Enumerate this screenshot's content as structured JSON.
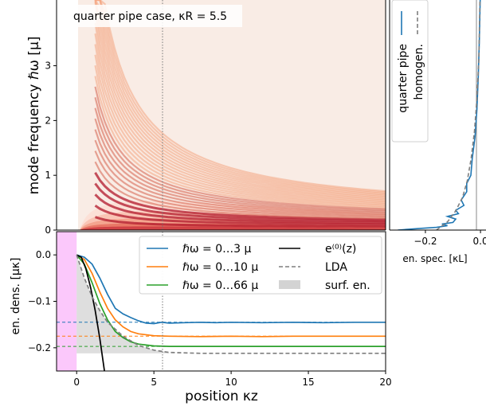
{
  "chart_data": [
    {
      "type": "heatmap",
      "annotation": "quarter pipe case, κR = 5.5",
      "ylabel": "mode frequency ℏω [μ]",
      "ylim": [
        0,
        4.2
      ],
      "xlim": [
        -1.3,
        20
      ],
      "yticks": [
        "0",
        "1",
        "2",
        "3"
      ],
      "colormap": "light-to-dark red (white → #a50f15)",
      "vertical_marker_x": 5.5
    },
    {
      "type": "line",
      "xlabel": "en. spec. [κL]",
      "xticks": [
        "−0.2",
        "0.0"
      ],
      "xlim": [
        -0.33,
        0.02
      ],
      "ylim": [
        0,
        4.2
      ],
      "legend_position": "top-center (rotated)",
      "series": [
        {
          "name": "quarter pipe",
          "color": "#1f77b4",
          "style": "solid",
          "points": [
            [
              -0.3,
              0.0
            ],
            [
              -0.22,
              0.03
            ],
            [
              -0.16,
              0.05
            ],
            [
              -0.12,
              0.08
            ],
            [
              -0.14,
              0.11
            ],
            [
              -0.1,
              0.14
            ],
            [
              -0.09,
              0.2
            ],
            [
              -0.12,
              0.25
            ],
            [
              -0.08,
              0.3
            ],
            [
              -0.09,
              0.36
            ],
            [
              -0.06,
              0.45
            ],
            [
              -0.07,
              0.55
            ],
            [
              -0.05,
              0.7
            ],
            [
              -0.05,
              0.85
            ],
            [
              -0.035,
              1.0
            ],
            [
              -0.03,
              1.3
            ],
            [
              -0.02,
              1.7
            ],
            [
              -0.013,
              2.2
            ],
            [
              -0.008,
              2.8
            ],
            [
              -0.004,
              3.5
            ],
            [
              -0.001,
              4.2
            ]
          ]
        },
        {
          "name": "homogen.",
          "color": "#7f7f7f",
          "style": "dashed",
          "points": [
            [
              -0.16,
              0.0
            ],
            [
              -0.12,
              0.15
            ],
            [
              -0.09,
              0.35
            ],
            [
              -0.065,
              0.6
            ],
            [
              -0.048,
              0.9
            ],
            [
              -0.034,
              1.3
            ],
            [
              -0.022,
              1.8
            ],
            [
              -0.013,
              2.4
            ],
            [
              -0.006,
              3.1
            ],
            [
              -0.002,
              4.2
            ]
          ]
        }
      ]
    },
    {
      "type": "line",
      "xlabel": "position κz",
      "ylabel": "en. dens. [μκ]",
      "xlim": [
        -1.3,
        20
      ],
      "ylim": [
        -0.25,
        0.05
      ],
      "xticks": [
        "0",
        "5",
        "10",
        "15",
        "20"
      ],
      "yticks": [
        "0.0",
        "−0.1",
        "−0.2"
      ],
      "highlight_region_x": [
        -1.3,
        0
      ],
      "vertical_marker_x": 5.5,
      "legend_position": "top-right",
      "series": [
        {
          "name": "ℏω = 0…3 μ",
          "color": "#1f77b4",
          "style": "solid",
          "asymptote": -0.145,
          "points": [
            [
              0,
              0.0
            ],
            [
              0.5,
              -0.005
            ],
            [
              1,
              -0.02
            ],
            [
              1.5,
              -0.05
            ],
            [
              2,
              -0.085
            ],
            [
              2.5,
              -0.115
            ],
            [
              3,
              -0.127
            ],
            [
              3.5,
              -0.135
            ],
            [
              4,
              -0.142
            ],
            [
              4.5,
              -0.147
            ],
            [
              5,
              -0.148
            ],
            [
              5.5,
              -0.145
            ],
            [
              6,
              -0.147
            ],
            [
              7,
              -0.146
            ],
            [
              8,
              -0.145
            ],
            [
              9,
              -0.146
            ],
            [
              10,
              -0.145
            ],
            [
              12,
              -0.146
            ],
            [
              14,
              -0.145
            ],
            [
              16,
              -0.146
            ],
            [
              18,
              -0.145
            ],
            [
              20,
              -0.145
            ]
          ]
        },
        {
          "name": "ℏω = 0…10 μ",
          "color": "#ff7f0e",
          "style": "solid",
          "asymptote": -0.175,
          "points": [
            [
              0,
              0.0
            ],
            [
              0.5,
              -0.01
            ],
            [
              1,
              -0.04
            ],
            [
              1.5,
              -0.08
            ],
            [
              2,
              -0.115
            ],
            [
              2.5,
              -0.14
            ],
            [
              3,
              -0.155
            ],
            [
              3.5,
              -0.165
            ],
            [
              4,
              -0.17
            ],
            [
              5,
              -0.174
            ],
            [
              6,
              -0.175
            ],
            [
              8,
              -0.176
            ],
            [
              10,
              -0.175
            ],
            [
              12,
              -0.176
            ],
            [
              14,
              -0.175
            ],
            [
              16,
              -0.175
            ],
            [
              18,
              -0.175
            ],
            [
              20,
              -0.175
            ]
          ]
        },
        {
          "name": "ℏω = 0…66 μ",
          "color": "#2ca02c",
          "style": "solid",
          "asymptote": -0.197,
          "points": [
            [
              0,
              0.0
            ],
            [
              0.5,
              -0.02
            ],
            [
              1,
              -0.06
            ],
            [
              1.5,
              -0.105
            ],
            [
              2,
              -0.14
            ],
            [
              2.5,
              -0.165
            ],
            [
              3,
              -0.178
            ],
            [
              3.5,
              -0.187
            ],
            [
              4,
              -0.192
            ],
            [
              5,
              -0.196
            ],
            [
              6,
              -0.197
            ],
            [
              10,
              -0.197
            ],
            [
              15,
              -0.197
            ],
            [
              20,
              -0.197
            ]
          ]
        },
        {
          "name": "e⁽⁰⁾(z)",
          "color": "#000000",
          "style": "solid",
          "points": [
            [
              0,
              0.0
            ],
            [
              0.3,
              -0.005
            ],
            [
              0.6,
              -0.03
            ],
            [
              0.9,
              -0.07
            ],
            [
              1.2,
              -0.12
            ],
            [
              1.5,
              -0.18
            ],
            [
              1.8,
              -0.25
            ]
          ]
        },
        {
          "name": "LDA",
          "color": "#7f7f7f",
          "style": "dashed",
          "points": [
            [
              0,
              0.0
            ],
            [
              0.5,
              -0.05
            ],
            [
              1,
              -0.09
            ],
            [
              1.5,
              -0.12
            ],
            [
              2,
              -0.145
            ],
            [
              3,
              -0.175
            ],
            [
              4,
              -0.195
            ],
            [
              5,
              -0.205
            ],
            [
              6,
              -0.21
            ],
            [
              8,
              -0.212
            ],
            [
              10,
              -0.212
            ],
            [
              20,
              -0.212
            ]
          ]
        },
        {
          "name": "surf. en.",
          "color": "#d3d3d3",
          "style": "fill",
          "fill_level": -0.212
        }
      ]
    }
  ]
}
